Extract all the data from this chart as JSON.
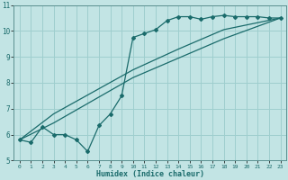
{
  "xlabel": "Humidex (Indice chaleur)",
  "xlim": [
    -0.5,
    23.5
  ],
  "ylim": [
    5,
    11
  ],
  "yticks": [
    5,
    6,
    7,
    8,
    9,
    10,
    11
  ],
  "xticks": [
    0,
    1,
    2,
    3,
    4,
    5,
    6,
    7,
    8,
    9,
    10,
    11,
    12,
    13,
    14,
    15,
    16,
    17,
    18,
    19,
    20,
    21,
    22,
    23
  ],
  "bg_color": "#c2e4e4",
  "grid_color": "#9ecece",
  "line_color": "#1a6b6b",
  "line1_x": [
    0,
    1,
    2,
    3,
    4,
    5,
    6,
    7,
    8,
    9,
    10,
    11,
    12,
    13,
    14,
    15,
    16,
    17,
    18,
    19,
    20,
    21,
    22,
    23
  ],
  "line1_y": [
    5.8,
    5.7,
    6.3,
    6.0,
    6.0,
    5.8,
    5.35,
    6.35,
    6.8,
    7.5,
    9.75,
    9.9,
    10.05,
    10.4,
    10.55,
    10.55,
    10.45,
    10.55,
    10.6,
    10.55,
    10.55,
    10.55,
    10.5,
    10.5
  ],
  "line2_x": [
    0,
    3,
    10,
    14,
    18,
    23
  ],
  "line2_y": [
    5.8,
    6.45,
    8.2,
    8.95,
    9.7,
    10.5
  ],
  "line3_x": [
    0,
    3,
    10,
    14,
    18,
    23
  ],
  "line3_y": [
    5.8,
    6.8,
    8.5,
    9.3,
    10.05,
    10.5
  ]
}
